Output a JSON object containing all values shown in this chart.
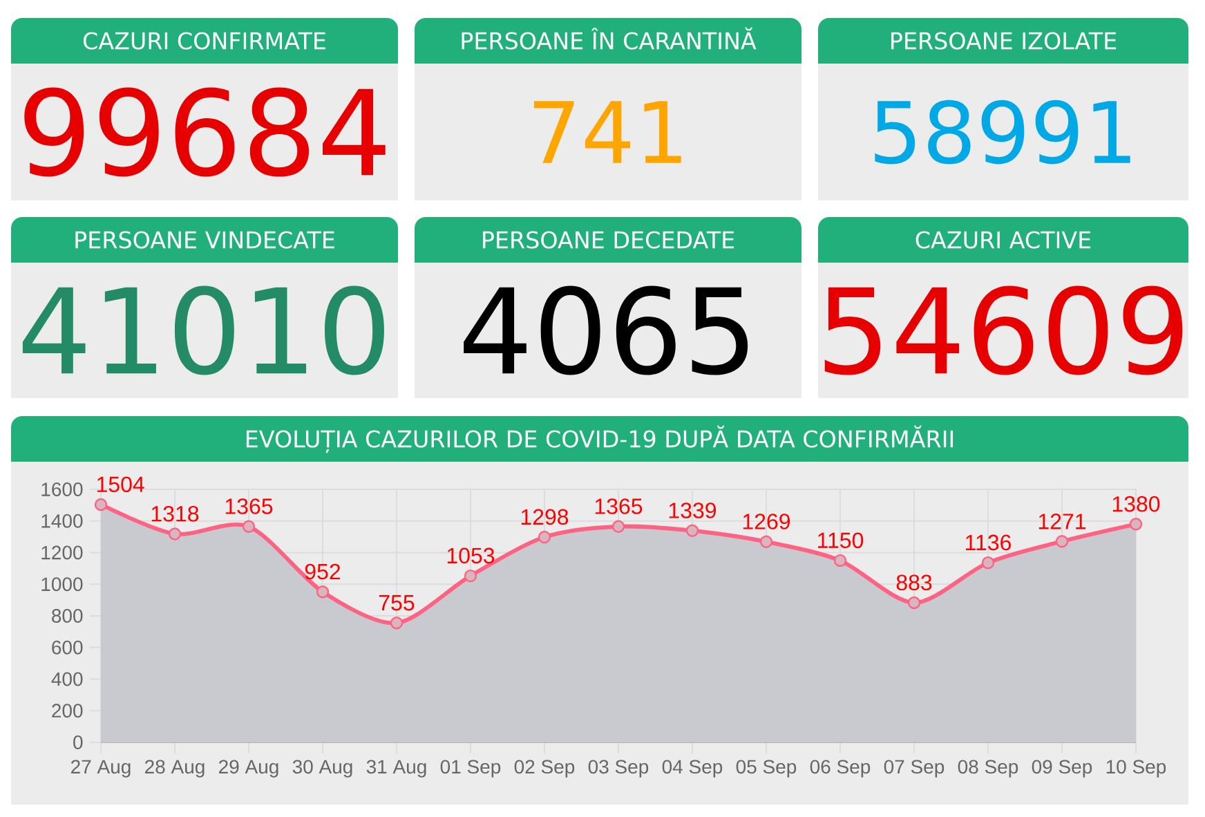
{
  "chart_data": [
    {
      "type": "other",
      "title": "CAZURI CONFIRMATE",
      "values": [
        99684
      ],
      "data_labels": true
    },
    {
      "type": "other",
      "title": "PERSOANE ÎN CARANTINĂ",
      "values": [
        741
      ],
      "data_labels": true
    },
    {
      "type": "other",
      "title": "PERSOANE IZOLATE",
      "values": [
        58991
      ],
      "data_labels": true
    },
    {
      "type": "other",
      "title": "PERSOANE VINDECATE",
      "values": [
        41010
      ],
      "data_labels": true
    },
    {
      "type": "other",
      "title": "PERSOANE DECEDATE",
      "values": [
        4065
      ],
      "data_labels": true
    },
    {
      "type": "other",
      "title": "CAZURI ACTIVE",
      "values": [
        54609
      ],
      "data_labels": true
    },
    {
      "type": "area",
      "title": "EVOLUȚIA CAZURILOR DE COVID-19 DUPĂ DATA CONFIRMĂRII",
      "categories": [
        "27 Aug",
        "28 Aug",
        "29 Aug",
        "30 Aug",
        "31 Aug",
        "01 Sep",
        "02 Sep",
        "03 Sep",
        "04 Sep",
        "05 Sep",
        "06 Sep",
        "07 Sep",
        "08 Sep",
        "09 Sep",
        "10 Sep"
      ],
      "values": [
        1504,
        1318,
        1365,
        952,
        755,
        1053,
        1298,
        1365,
        1339,
        1269,
        1150,
        883,
        1136,
        1271,
        1380
      ],
      "color": "#c9cacf",
      "ylim": [
        0,
        1600
      ],
      "yticks": [
        0,
        200,
        400,
        600,
        800,
        1000,
        1200,
        1400,
        1600
      ],
      "grid": true,
      "marker": "circle",
      "data_labels": true
    }
  ]
}
